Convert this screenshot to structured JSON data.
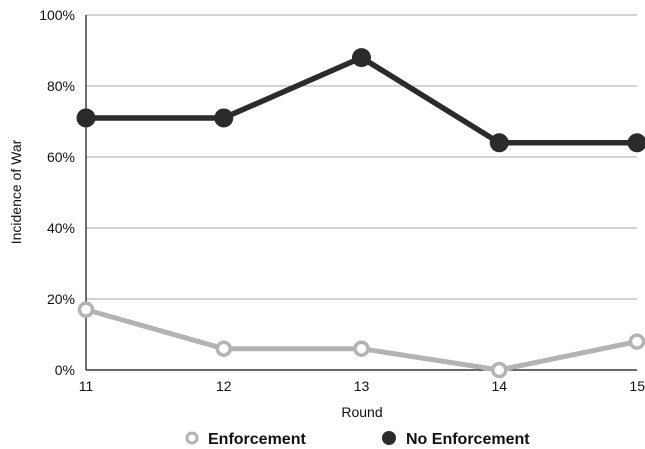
{
  "chart_data": {
    "type": "line",
    "xlabel": "Round",
    "ylabel": "Incidence of War",
    "x": [
      11,
      12,
      13,
      14,
      15
    ],
    "x_tick_labels": [
      "11",
      "12",
      "13",
      "14",
      "15"
    ],
    "ylim": [
      0,
      100
    ],
    "y_unit": "percent",
    "y_ticks": [
      0,
      20,
      40,
      60,
      80,
      100
    ],
    "y_tick_labels": [
      "0%",
      "20%",
      "40%",
      "60%",
      "80%",
      "100%"
    ],
    "grid": true,
    "legend_position": "bottom",
    "series": [
      {
        "name": "Enforcement",
        "values": [
          17,
          6,
          6,
          0,
          8
        ],
        "color": "#b3b3b3",
        "marker": "hollow-circle"
      },
      {
        "name": "No Enforcement",
        "values": [
          71,
          71,
          88,
          64,
          64
        ],
        "color": "#2b2b2b",
        "marker": "filled-circle"
      }
    ]
  }
}
